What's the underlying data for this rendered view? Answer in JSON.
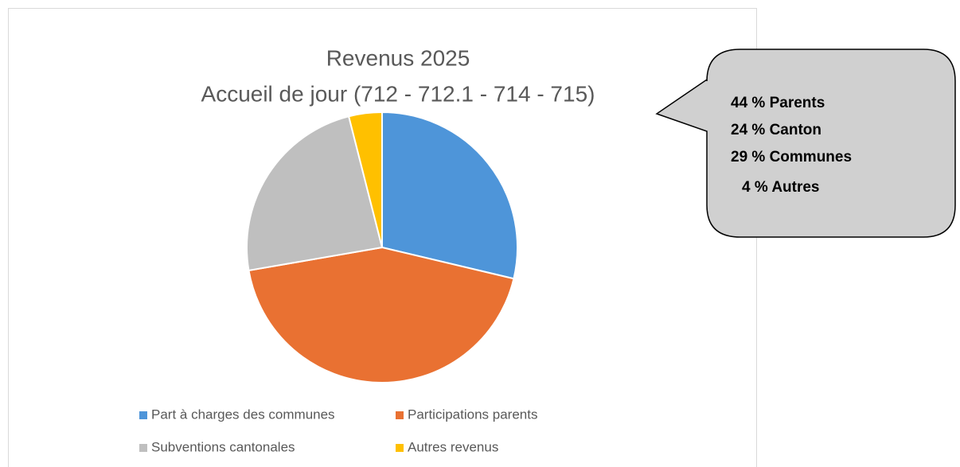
{
  "chart_data": {
    "type": "pie",
    "title": "Revenus 2025",
    "subtitle": "Accueil de jour (712 - 712.1 - 714 - 715)",
    "categories": [
      "Part à charges des communes",
      "Participations parents",
      "Subventions cantonales",
      "Autres revenus"
    ],
    "values": [
      29,
      44,
      24,
      4
    ],
    "colors": [
      "#4e95d9",
      "#e97132",
      "#bfbfbf",
      "#ffc000"
    ],
    "annotations": [
      "44 % Parents",
      "24 % Canton",
      "29 % Communes",
      "4 % Autres"
    ]
  }
}
